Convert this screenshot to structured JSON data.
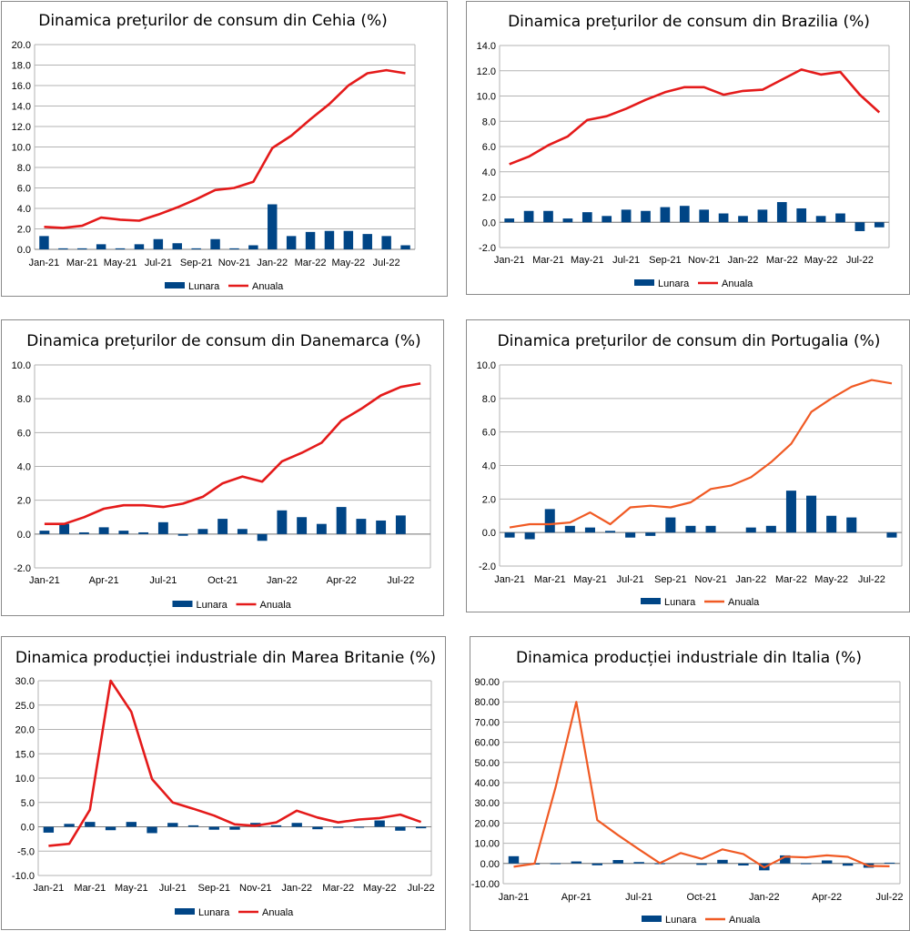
{
  "legend_labels": {
    "monthly": "Lunara",
    "annual": "Anuala"
  },
  "colors": {
    "bar": "#004586",
    "line_red": "#e41a1a",
    "line_orange": "#f05a24",
    "grid": "#b3b3b3"
  },
  "chart_data": [
    {
      "type": "bar+line",
      "title": "Dinamica prețurilor de consum din Cehia (%)",
      "categories": [
        "Jan-21",
        "Feb-21",
        "Mar-21",
        "Apr-21",
        "May-21",
        "Jun-21",
        "Jul-21",
        "Aug-21",
        "Sep-21",
        "Oct-21",
        "Nov-21",
        "Dec-21",
        "Jan-22",
        "Feb-22",
        "Mar-22",
        "Apr-22",
        "May-22",
        "Jun-22",
        "Jul-22",
        "Aug-22"
      ],
      "x_tick_labels": [
        "Jan-21",
        "Mar-21",
        "May-21",
        "Jul-21",
        "Sep-21",
        "Nov-21",
        "Jan-22",
        "Mar-22",
        "May-22",
        "Jul-22"
      ],
      "series": [
        {
          "name": "Lunara",
          "kind": "bar",
          "values": [
            1.3,
            0.1,
            0.1,
            0.5,
            0.1,
            0.5,
            1.0,
            0.6,
            0.1,
            1.0,
            0.1,
            0.4,
            4.4,
            1.3,
            1.7,
            1.8,
            1.8,
            1.5,
            1.3,
            0.4
          ]
        },
        {
          "name": "Anuala",
          "kind": "line",
          "color": "red",
          "values": [
            2.2,
            2.1,
            2.3,
            3.1,
            2.9,
            2.8,
            3.4,
            4.1,
            4.9,
            5.8,
            6.0,
            6.6,
            9.9,
            11.1,
            12.7,
            14.2,
            16.0,
            17.2,
            17.5,
            17.2
          ]
        }
      ],
      "ylim": [
        0,
        20
      ],
      "ystep": 2,
      "ydecimals": 1,
      "xlabel_spacing": 2
    },
    {
      "type": "bar+line",
      "title": "Dinamica prețurilor de consum din Brazilia (%)",
      "categories": [
        "Jan-21",
        "Feb-21",
        "Mar-21",
        "Apr-21",
        "May-21",
        "Jun-21",
        "Jul-21",
        "Aug-21",
        "Sep-21",
        "Oct-21",
        "Nov-21",
        "Dec-21",
        "Jan-22",
        "Feb-22",
        "Mar-22",
        "Apr-22",
        "May-22",
        "Jun-22",
        "Jul-22",
        "Aug-22"
      ],
      "x_tick_labels": [
        "Jan-21",
        "Mar-21",
        "May-21",
        "Jul-21",
        "Sep-21",
        "Nov-21",
        "Jan-22",
        "Mar-22",
        "May-22",
        "Jul-22"
      ],
      "series": [
        {
          "name": "Lunara",
          "kind": "bar",
          "values": [
            0.3,
            0.9,
            0.9,
            0.3,
            0.8,
            0.5,
            1.0,
            0.9,
            1.2,
            1.3,
            1.0,
            0.7,
            0.5,
            1.0,
            1.6,
            1.1,
            0.5,
            0.7,
            -0.7,
            -0.4
          ]
        },
        {
          "name": "Anuala",
          "kind": "line",
          "color": "red",
          "values": [
            4.6,
            5.2,
            6.1,
            6.8,
            8.1,
            8.4,
            9.0,
            9.7,
            10.3,
            10.7,
            10.7,
            10.1,
            10.4,
            10.5,
            11.3,
            12.1,
            11.7,
            11.9,
            10.1,
            8.7
          ]
        }
      ],
      "ylim": [
        -2,
        14
      ],
      "ystep": 2,
      "ydecimals": 1,
      "xlabel_spacing": 2
    },
    {
      "type": "bar+line",
      "title": "Dinamica prețurilor de consum din Danemarca (%)",
      "categories": [
        "Jan-21",
        "Feb-21",
        "Mar-21",
        "Apr-21",
        "May-21",
        "Jun-21",
        "Jul-21",
        "Aug-21",
        "Sep-21",
        "Oct-21",
        "Nov-21",
        "Dec-21",
        "Jan-22",
        "Feb-22",
        "Mar-22",
        "Apr-22",
        "May-22",
        "Jun-22",
        "Jul-22",
        "Aug-22"
      ],
      "x_tick_labels": [
        "Jan-21",
        "Apr-21",
        "Jul-21",
        "Oct-21",
        "Jan-22",
        "Apr-22",
        "Jul-22"
      ],
      "series": [
        {
          "name": "Lunara",
          "kind": "bar",
          "values": [
            0.2,
            0.6,
            0.1,
            0.4,
            0.2,
            0.1,
            0.7,
            -0.1,
            0.3,
            0.9,
            0.3,
            -0.4,
            1.4,
            1.0,
            0.6,
            1.6,
            0.9,
            0.8,
            1.1,
            0.0
          ]
        },
        {
          "name": "Anuala",
          "kind": "line",
          "color": "red",
          "values": [
            0.6,
            0.6,
            1.0,
            1.5,
            1.7,
            1.7,
            1.6,
            1.8,
            2.2,
            3.0,
            3.4,
            3.1,
            4.3,
            4.8,
            5.4,
            6.7,
            7.4,
            8.2,
            8.7,
            8.9
          ]
        }
      ],
      "ylim": [
        -2,
        10
      ],
      "ystep": 2,
      "ydecimals": 1,
      "xlabel_spacing": 3
    },
    {
      "type": "bar+line",
      "title": "Dinamica prețurilor de consum din Portugalia (%)",
      "categories": [
        "Jan-21",
        "Feb-21",
        "Mar-21",
        "Apr-21",
        "May-21",
        "Jun-21",
        "Jul-21",
        "Aug-21",
        "Sep-21",
        "Oct-21",
        "Nov-21",
        "Dec-21",
        "Jan-22",
        "Feb-22",
        "Mar-22",
        "Apr-22",
        "May-22",
        "Jun-22",
        "Jul-22",
        "Aug-22"
      ],
      "x_tick_labels": [
        "Jan-21",
        "Mar-21",
        "May-21",
        "Jul-21",
        "Sep-21",
        "Nov-21",
        "Jan-22",
        "Mar-22",
        "May-22",
        "Jul-22"
      ],
      "series": [
        {
          "name": "Lunara",
          "kind": "bar",
          "values": [
            -0.3,
            -0.4,
            1.4,
            0.4,
            0.3,
            0.1,
            -0.3,
            -0.2,
            0.9,
            0.4,
            0.4,
            0.0,
            0.3,
            0.4,
            2.5,
            2.2,
            1.0,
            0.9,
            0.0,
            -0.3
          ]
        },
        {
          "name": "Anuala",
          "kind": "line",
          "color": "orange",
          "values": [
            0.3,
            0.5,
            0.5,
            0.6,
            1.2,
            0.5,
            1.5,
            1.6,
            1.5,
            1.8,
            2.6,
            2.8,
            3.3,
            4.2,
            5.3,
            7.2,
            8.0,
            8.7,
            9.1,
            8.9
          ]
        }
      ],
      "ylim": [
        -2,
        10
      ],
      "ystep": 2,
      "ydecimals": 1,
      "xlabel_spacing": 2
    },
    {
      "type": "bar+line",
      "title": "Dinamica producției industriale din Marea Britanie (%)",
      "categories": [
        "Jan-21",
        "Feb-21",
        "Mar-21",
        "Apr-21",
        "May-21",
        "Jun-21",
        "Jul-21",
        "Aug-21",
        "Sep-21",
        "Oct-21",
        "Nov-21",
        "Dec-21",
        "Jan-22",
        "Feb-22",
        "Mar-22",
        "Apr-22",
        "May-22",
        "Jun-22",
        "Jul-22"
      ],
      "x_tick_labels": [
        "Jan-21",
        "Mar-21",
        "May-21",
        "Jul-21",
        "Sep-21",
        "Nov-21",
        "Jan-22",
        "Mar-22",
        "May-22",
        "Jul-22"
      ],
      "series": [
        {
          "name": "Lunara",
          "kind": "bar",
          "values": [
            -1.2,
            0.6,
            1.0,
            -0.7,
            1.0,
            -1.3,
            0.8,
            0.3,
            -0.6,
            -0.6,
            0.8,
            0.3,
            0.8,
            -0.5,
            -0.2,
            -0.1,
            1.3,
            -0.8,
            -0.3
          ]
        },
        {
          "name": "Anuala",
          "kind": "line",
          "color": "red",
          "values": [
            -3.9,
            -3.5,
            3.5,
            30.0,
            23.6,
            9.8,
            5.0,
            3.7,
            2.3,
            0.5,
            0.2,
            0.9,
            3.3,
            1.9,
            0.9,
            1.5,
            1.8,
            2.5,
            1.0
          ]
        }
      ],
      "ylim": [
        -10,
        30
      ],
      "ystep": 5,
      "ydecimals": 1,
      "xlabel_spacing": 2
    },
    {
      "type": "bar+line",
      "title": "Dinamica producției industriale din Italia (%)",
      "categories": [
        "Jan-21",
        "Feb-21",
        "Mar-21",
        "Apr-21",
        "May-21",
        "Jun-21",
        "Jul-21",
        "Aug-21",
        "Sep-21",
        "Oct-21",
        "Nov-21",
        "Dec-21",
        "Jan-22",
        "Feb-22",
        "Mar-22",
        "Apr-22",
        "May-22",
        "Jun-22",
        "Jul-22"
      ],
      "x_tick_labels": [
        "Jan-21",
        "Apr-21",
        "Jul-21",
        "Oct-21",
        "Jan-22",
        "Apr-22",
        "Jul-22"
      ],
      "series": [
        {
          "name": "Lunara",
          "kind": "bar",
          "values": [
            3.6,
            -0.5,
            0.1,
            1.0,
            -0.9,
            1.7,
            0.7,
            0.1,
            0.0,
            -0.7,
            1.8,
            -1.0,
            -3.4,
            4.0,
            0.1,
            1.5,
            -1.1,
            -2.1,
            0.4
          ]
        },
        {
          "name": "Anuala",
          "kind": "line",
          "color": "orange",
          "values": [
            -1.6,
            -0.1,
            37.5,
            80.0,
            21.5,
            14.0,
            7.0,
            0.2,
            5.2,
            2.3,
            7.0,
            4.7,
            -2.0,
            3.4,
            3.0,
            4.0,
            3.3,
            -1.2,
            -1.4
          ]
        }
      ],
      "ylim": [
        -10,
        90
      ],
      "ystep": 10,
      "ydecimals": 2,
      "xlabel_spacing": 3
    }
  ]
}
